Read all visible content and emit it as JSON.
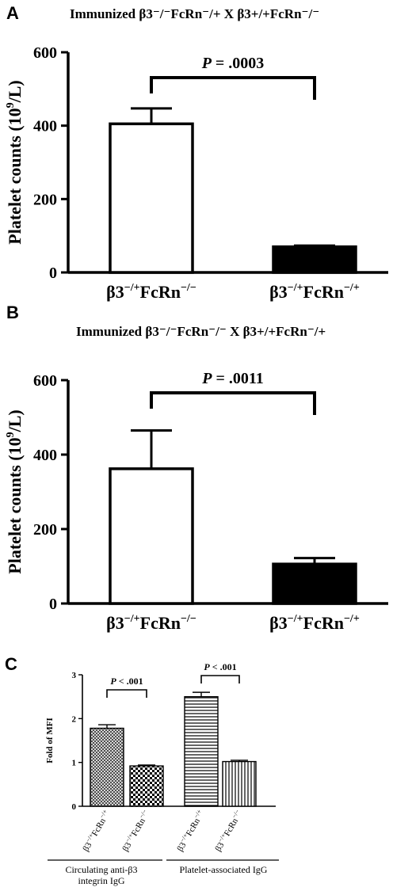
{
  "panels": {
    "a": {
      "letter": "A",
      "title": "Immunized β3⁻/⁻FcRn⁻/+ X β3+/+FcRn⁻/⁻"
    },
    "b": {
      "letter": "B",
      "title": "Immunized β3⁻/⁻FcRn⁻/⁻ X β3+/+FcRn⁻/+"
    },
    "c": {
      "letter": "C"
    }
  },
  "chart_data": [
    {
      "panel": "A",
      "type": "bar",
      "title": "Immunized β3-/-FcRn-/+ X β3+/+FcRn-/-",
      "ylabel": "Platelet counts (10^9/L)",
      "ylim": [
        0,
        600
      ],
      "yticks": [
        "0",
        "200",
        "400",
        "600"
      ],
      "categories": [
        "β3-/+FcRn-/-",
        "β3-/+FcRn-/+"
      ],
      "values": [
        405,
        70
      ],
      "errors": [
        42,
        3
      ],
      "fills": [
        "#ffffff",
        "#000000"
      ],
      "significance": {
        "p_prefix": "P",
        "p_text": " = .0003"
      }
    },
    {
      "panel": "B",
      "type": "bar",
      "title": "Immunized β3-/-FcRn-/- X β3+/+FcRn-/+",
      "ylabel": "Platelet counts (10^9/L)",
      "ylim": [
        0,
        600
      ],
      "yticks": [
        "0",
        "200",
        "400",
        "600"
      ],
      "categories": [
        "β3-/+FcRn-/-",
        "β3-/+FcRn-/+"
      ],
      "values": [
        362,
        106
      ],
      "errors": [
        103,
        16
      ],
      "fills": [
        "#ffffff",
        "#000000"
      ],
      "significance": {
        "p_prefix": "P",
        "p_text": " = .0011"
      }
    },
    {
      "panel": "C",
      "type": "bar",
      "ylabel": "Fold of MFI",
      "ylim": [
        0,
        3
      ],
      "yticks": [
        "0",
        "1",
        "2",
        "3"
      ],
      "categories": [
        "β3-/+FcRn-/+",
        "β3-/+FcRn-/-",
        "β3-/+FcRn-/+",
        "β3-/+FcRn-/-"
      ],
      "values": [
        1.78,
        0.92,
        2.5,
        1.02
      ],
      "errors": [
        0.08,
        0.02,
        0.1,
        0.03
      ],
      "patterns": [
        "crosshatch",
        "checker",
        "horizontal-lines",
        "vertical-lines"
      ],
      "groups": [
        {
          "label_lines": [
            "Circulating anti-β3",
            "integrin IgG"
          ]
        },
        {
          "label_lines": [
            "Platelet-associated IgG"
          ]
        }
      ],
      "significance": [
        {
          "p_prefix": "P",
          "p_text": " < .001"
        },
        {
          "p_prefix": "P",
          "p_text": " < .001"
        }
      ]
    }
  ]
}
